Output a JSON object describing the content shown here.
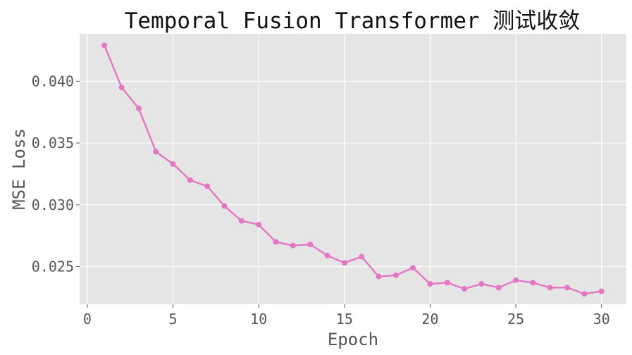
{
  "chart_data": {
    "type": "line",
    "title": "Temporal Fusion Transformer 测试收敛",
    "xlabel": "Epoch",
    "ylabel": "MSE Loss",
    "xlim": [
      -0.45,
      31.45
    ],
    "ylim": [
      0.02195,
      0.04384
    ],
    "xticks": [
      0,
      5,
      10,
      15,
      20,
      25,
      30
    ],
    "xtick_labels": [
      "0",
      "5",
      "10",
      "15",
      "20",
      "25",
      "30"
    ],
    "yticks": [
      0.025,
      0.03,
      0.035,
      0.04
    ],
    "ytick_labels": [
      "0.025",
      "0.030",
      "0.035",
      "0.040"
    ],
    "grid": true,
    "background": "#e5e5e5",
    "grid_color": "#ffffff",
    "series": [
      {
        "color": "#e377c2",
        "marker": "circle",
        "x": [
          1,
          2,
          3,
          4,
          5,
          6,
          7,
          8,
          9,
          10,
          11,
          12,
          13,
          14,
          15,
          16,
          17,
          18,
          19,
          20,
          21,
          22,
          23,
          24,
          25,
          26,
          27,
          28,
          29,
          30
        ],
        "y": [
          0.0429,
          0.0395,
          0.0378,
          0.0343,
          0.0333,
          0.032,
          0.0315,
          0.0299,
          0.0287,
          0.0284,
          0.027,
          0.0267,
          0.0268,
          0.0259,
          0.0253,
          0.0258,
          0.0242,
          0.0243,
          0.0249,
          0.0236,
          0.0237,
          0.0232,
          0.0236,
          0.0233,
          0.0239,
          0.0237,
          0.0233,
          0.0233,
          0.0228,
          0.023
        ]
      }
    ]
  }
}
